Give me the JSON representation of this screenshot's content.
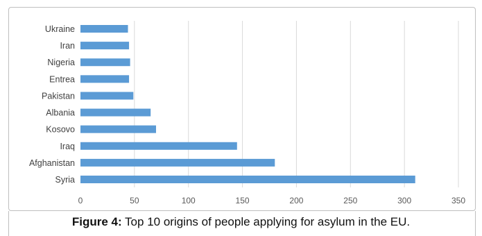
{
  "caption": {
    "prefix": "Figure 4:",
    "text": " Top 10 origins of people applying for asylum in the EU."
  },
  "chart_data": {
    "type": "bar",
    "orientation": "horizontal",
    "categories": [
      "Syria",
      "Afghanistan",
      "Iraq",
      "Kosovo",
      "Albania",
      "Pakistan",
      "Entrea",
      "Nigeria",
      "Iran",
      "Ukraine"
    ],
    "values": [
      310,
      180,
      145,
      70,
      65,
      49,
      45,
      46,
      45,
      44
    ],
    "xlim": [
      0,
      350
    ],
    "xticks": [
      0,
      50,
      100,
      150,
      200,
      250,
      300,
      350
    ],
    "grid": true,
    "legend": "none",
    "bar_color": "#5b9bd5",
    "grid_color": "#d9d9d9"
  }
}
